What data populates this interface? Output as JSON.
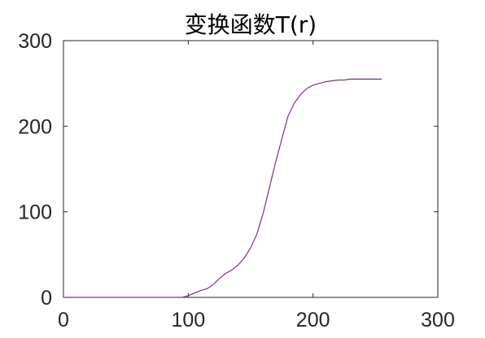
{
  "chart_data": {
    "type": "line",
    "title": "变换函数T(r)",
    "xlabel": "",
    "ylabel": "",
    "xlim": [
      0,
      300
    ],
    "ylim": [
      0,
      300
    ],
    "xticks": [
      "0",
      "100",
      "200",
      "300"
    ],
    "yticks": [
      "0",
      "100",
      "200",
      "300"
    ],
    "grid": false,
    "series": [
      {
        "color": "#7e2f8e",
        "x": [
          0,
          20,
          40,
          60,
          80,
          95,
          100,
          105,
          110,
          115,
          120,
          125,
          130,
          135,
          140,
          145,
          150,
          155,
          160,
          165,
          170,
          175,
          180,
          185,
          190,
          195,
          200,
          205,
          210,
          215,
          220,
          225,
          230,
          240,
          250,
          255
        ],
        "y": [
          0,
          0,
          0,
          0,
          0,
          0,
          2,
          5,
          8,
          10,
          15,
          22,
          28,
          32,
          38,
          46,
          58,
          74,
          98,
          128,
          158,
          185,
          212,
          227,
          237,
          244,
          248,
          250,
          252,
          253,
          254,
          254,
          255,
          255,
          255,
          255
        ]
      }
    ]
  }
}
